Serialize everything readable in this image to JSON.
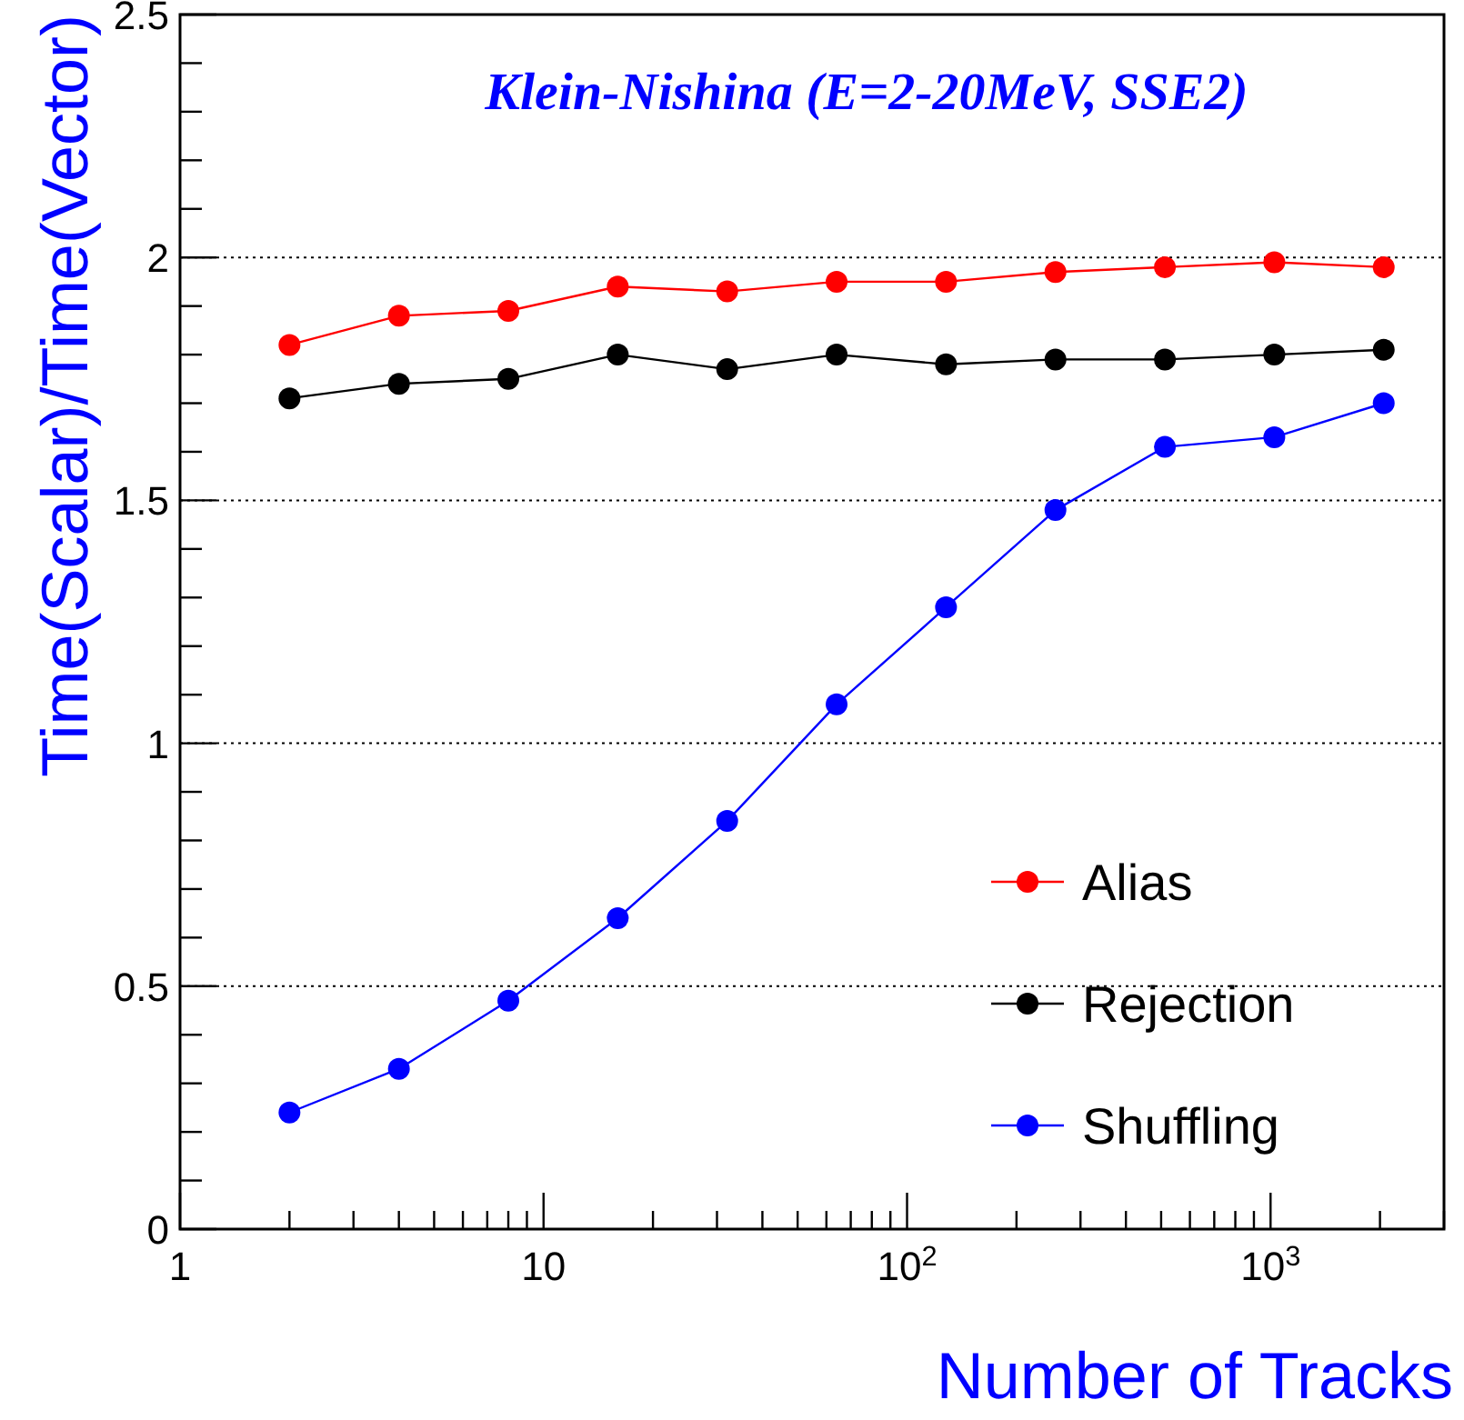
{
  "chart_data": {
    "type": "line",
    "title": "Klein-Nishina (E=2-20MeV, SSE2)",
    "xlabel": "Number of Tracks",
    "ylabel": "Time(Scalar)/Time(Vector)",
    "x": [
      2,
      4,
      8,
      16,
      32,
      64,
      128,
      256,
      512,
      1024,
      2048
    ],
    "series": [
      {
        "name": "Alias",
        "color": "#ff0000",
        "values": [
          1.82,
          1.88,
          1.89,
          1.94,
          1.93,
          1.95,
          1.95,
          1.97,
          1.98,
          1.99,
          1.98
        ]
      },
      {
        "name": "Rejection",
        "color": "#000000",
        "values": [
          1.71,
          1.74,
          1.75,
          1.8,
          1.77,
          1.8,
          1.78,
          1.79,
          1.79,
          1.8,
          1.81
        ]
      },
      {
        "name": "Shuffling",
        "color": "#0000ff",
        "values": [
          0.24,
          0.33,
          0.47,
          0.64,
          0.84,
          1.08,
          1.28,
          1.48,
          1.61,
          1.63,
          1.7
        ]
      }
    ],
    "log": "x",
    "xlim": [
      1,
      3000
    ],
    "xticks": [
      1,
      10,
      {
        "value": 100,
        "label": "10$^{2}$"
      },
      {
        "value": 1000,
        "label": "10$^{3}$"
      },
      {
        "value": 2,
        "label": null
      },
      {
        "value": 3,
        "label": null
      },
      {
        "value": 4,
        "label": null
      },
      {
        "value": 5,
        "label": null
      },
      {
        "value": 6,
        "label": null
      },
      {
        "value": 7,
        "label": null
      },
      {
        "value": 8,
        "label": null
      },
      {
        "value": 9,
        "label": null
      },
      {
        "value": 20,
        "label": null
      },
      {
        "value": 30,
        "label": null
      },
      {
        "value": 40,
        "label": null
      },
      {
        "value": 50,
        "label": null
      },
      {
        "value": 60,
        "label": null
      },
      {
        "value": 70,
        "label": null
      },
      {
        "value": 80,
        "label": null
      },
      {
        "value": 90,
        "label": null
      },
      {
        "value": 200,
        "label": null
      },
      {
        "value": 300,
        "label": null
      },
      {
        "value": 400,
        "label": null
      },
      {
        "value": 500,
        "label": null
      },
      {
        "value": 600,
        "label": null
      },
      {
        "value": 700,
        "label": null
      },
      {
        "value": 800,
        "label": null
      },
      {
        "value": 900,
        "label": null
      },
      {
        "value": 2000,
        "label": null
      },
      {
        "value": 3000,
        "label": null
      }
    ],
    "ylim": [
      0,
      2.5
    ],
    "yticks": [
      0,
      0.5,
      1,
      1.5,
      2,
      2.5,
      {
        "value": 0.1,
        "label": null
      },
      {
        "value": 0.2,
        "label": null
      },
      {
        "value": 0.3,
        "label": null
      },
      {
        "value": 0.4,
        "label": null
      },
      {
        "value": 0.6,
        "label": null
      },
      {
        "value": 0.7,
        "label": null
      },
      {
        "value": 0.8,
        "label": null
      },
      {
        "value": 0.9,
        "label": null
      },
      {
        "value": 1.1,
        "label": null
      },
      {
        "value": 1.2,
        "label": null
      },
      {
        "value": 1.3,
        "label": null
      },
      {
        "value": 1.4,
        "label": null
      },
      {
        "value": 1.6,
        "label": null
      },
      {
        "value": 1.7,
        "label": null
      },
      {
        "value": 1.8,
        "label": null
      },
      {
        "value": 1.9,
        "label": null
      },
      {
        "value": 2.1,
        "label": null
      },
      {
        "value": 2.2,
        "label": null
      },
      {
        "value": 2.3,
        "label": null
      },
      {
        "value": 2.4,
        "label": null
      }
    ],
    "grid": "y",
    "legend": "bottom right",
    "marker": "circle",
    "line_style": "solid"
  }
}
